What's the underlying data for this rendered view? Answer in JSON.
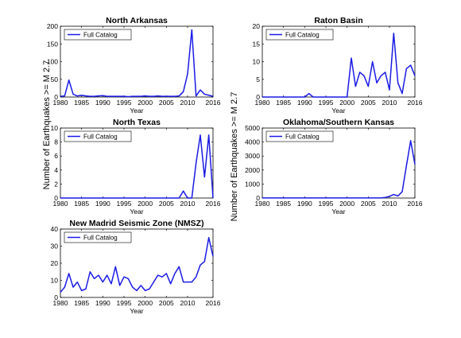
{
  "figure": {
    "ylabel": "Number of Earthquakes >= M 2.7"
  },
  "colors": {
    "series": "#1a1ae6",
    "axis": "#000000"
  },
  "chart_data": [
    {
      "type": "line",
      "title": "North Arkansas",
      "xlabel": "Year",
      "xlim": [
        1980,
        2016
      ],
      "ylim": [
        0,
        200
      ],
      "xticks": [
        1980,
        1985,
        1990,
        1995,
        2000,
        2005,
        2010,
        2016
      ],
      "yticks": [
        0,
        50,
        100,
        150,
        200
      ],
      "legend": "top-left",
      "series": [
        {
          "name": "Full Catalog",
          "x": [
            1980,
            1981,
            1982,
            1983,
            1984,
            1985,
            1986,
            1987,
            1988,
            1989,
            1990,
            1991,
            1992,
            1993,
            1994,
            1995,
            1996,
            1997,
            1998,
            1999,
            2000,
            2001,
            2002,
            2003,
            2004,
            2005,
            2006,
            2007,
            2008,
            2009,
            2010,
            2011,
            2012,
            2013,
            2014,
            2015,
            2016
          ],
          "values": [
            2,
            3,
            48,
            8,
            3,
            5,
            3,
            2,
            2,
            3,
            4,
            2,
            2,
            2,
            2,
            2,
            1,
            2,
            2,
            2,
            3,
            2,
            2,
            3,
            2,
            2,
            2,
            2,
            3,
            15,
            65,
            190,
            3,
            20,
            8,
            5,
            2
          ]
        }
      ]
    },
    {
      "type": "line",
      "title": "Raton Basin",
      "xlabel": "Year",
      "xlim": [
        1980,
        2016
      ],
      "ylim": [
        0,
        20
      ],
      "xticks": [
        1980,
        1985,
        1990,
        1995,
        2000,
        2005,
        2010,
        2016
      ],
      "yticks": [
        0,
        5,
        10,
        15,
        20
      ],
      "legend": "top-left",
      "series": [
        {
          "name": "Full Catalog",
          "x": [
            1980,
            1981,
            1982,
            1983,
            1984,
            1985,
            1986,
            1987,
            1988,
            1989,
            1990,
            1991,
            1992,
            1993,
            1994,
            1995,
            1996,
            1997,
            1998,
            1999,
            2000,
            2001,
            2002,
            2003,
            2004,
            2005,
            2006,
            2007,
            2008,
            2009,
            2010,
            2011,
            2012,
            2013,
            2014,
            2015,
            2016
          ],
          "values": [
            0,
            0,
            0,
            0,
            0,
            0,
            0,
            0,
            0,
            0,
            0,
            1,
            0,
            0,
            0,
            0,
            0,
            0,
            0,
            0,
            0,
            11,
            3,
            7,
            6,
            3,
            10,
            4,
            6,
            7,
            2,
            18,
            4,
            1,
            8,
            9,
            6
          ]
        }
      ]
    },
    {
      "type": "line",
      "title": "North Texas",
      "xlabel": "Year",
      "xlim": [
        1980,
        2016
      ],
      "ylim": [
        0,
        10
      ],
      "xticks": [
        1980,
        1985,
        1990,
        1995,
        2000,
        2005,
        2010,
        2016
      ],
      "yticks": [
        0,
        2,
        4,
        6,
        8,
        10
      ],
      "legend": "top-left",
      "series": [
        {
          "name": "Full Catalog",
          "x": [
            1980,
            1981,
            1982,
            1983,
            1984,
            1985,
            1986,
            1987,
            1988,
            1989,
            1990,
            1991,
            1992,
            1993,
            1994,
            1995,
            1996,
            1997,
            1998,
            1999,
            2000,
            2001,
            2002,
            2003,
            2004,
            2005,
            2006,
            2007,
            2008,
            2009,
            2010,
            2011,
            2012,
            2013,
            2014,
            2015,
            2016
          ],
          "values": [
            0,
            0,
            0,
            0,
            0,
            0,
            0,
            0,
            0,
            0,
            0,
            0,
            0,
            0,
            0,
            0,
            0,
            0,
            0,
            0,
            0,
            0,
            0,
            0,
            0,
            0,
            0,
            0,
            0,
            1,
            0,
            0,
            5,
            9,
            3,
            9,
            0
          ]
        }
      ]
    },
    {
      "type": "line",
      "title": "Oklahoma/Southern Kansas",
      "xlabel": "Year",
      "xlim": [
        1980,
        2016
      ],
      "ylim": [
        0,
        5000
      ],
      "xticks": [
        1980,
        1985,
        1990,
        1995,
        2000,
        2005,
        2010,
        2016
      ],
      "yticks": [
        0,
        1000,
        2000,
        3000,
        4000,
        5000
      ],
      "legend": "top-left",
      "series": [
        {
          "name": "Full Catalog",
          "x": [
            1980,
            1981,
            1982,
            1983,
            1984,
            1985,
            1986,
            1987,
            1988,
            1989,
            1990,
            1991,
            1992,
            1993,
            1994,
            1995,
            1996,
            1997,
            1998,
            1999,
            2000,
            2001,
            2002,
            2003,
            2004,
            2005,
            2006,
            2007,
            2008,
            2009,
            2010,
            2011,
            2012,
            2013,
            2014,
            2015,
            2016
          ],
          "values": [
            5,
            5,
            5,
            5,
            5,
            5,
            5,
            5,
            5,
            5,
            5,
            5,
            5,
            5,
            5,
            5,
            5,
            5,
            5,
            5,
            5,
            5,
            5,
            5,
            5,
            5,
            5,
            5,
            10,
            40,
            120,
            250,
            150,
            450,
            2300,
            4100,
            2400
          ]
        }
      ]
    },
    {
      "type": "line",
      "title": "New Madrid Seismic Zone (NMSZ)",
      "xlabel": "Year",
      "xlim": [
        1980,
        2016
      ],
      "ylim": [
        0,
        40
      ],
      "xticks": [
        1980,
        1985,
        1990,
        1995,
        2000,
        2005,
        2010,
        2016
      ],
      "yticks": [
        0,
        10,
        20,
        30,
        40
      ],
      "legend": "top-left",
      "series": [
        {
          "name": "Full Catalog",
          "x": [
            1980,
            1981,
            1982,
            1983,
            1984,
            1985,
            1986,
            1987,
            1988,
            1989,
            1990,
            1991,
            1992,
            1993,
            1994,
            1995,
            1996,
            1997,
            1998,
            1999,
            2000,
            2001,
            2002,
            2003,
            2004,
            2005,
            2006,
            2007,
            2008,
            2009,
            2010,
            2011,
            2012,
            2013,
            2014,
            2015,
            2016
          ],
          "values": [
            3,
            6,
            14,
            6,
            9,
            4,
            5,
            15,
            11,
            13,
            9,
            13,
            8,
            18,
            7,
            12,
            11,
            6,
            4,
            7,
            4,
            5,
            9,
            13,
            12,
            14,
            8,
            14,
            18,
            9,
            9,
            9,
            12,
            19,
            21,
            35,
            24
          ]
        }
      ]
    }
  ]
}
